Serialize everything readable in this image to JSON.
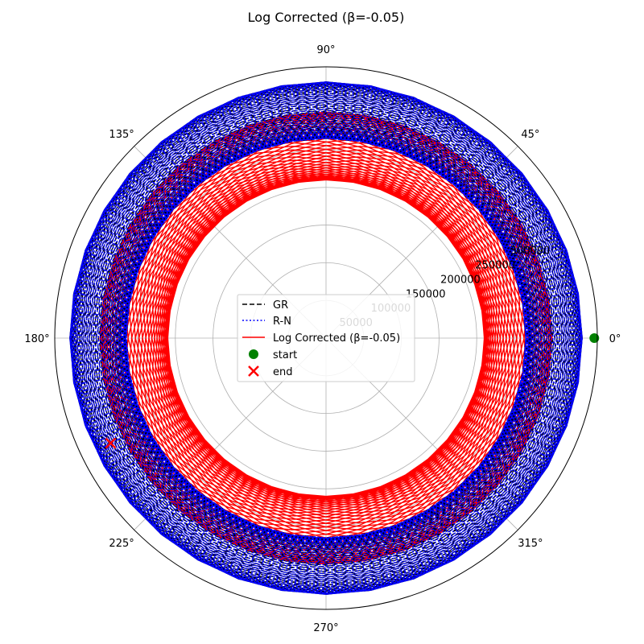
{
  "chart_data": {
    "type": "polar-line",
    "title": "Log Corrected (β=-0.05)",
    "angle_tick_labels": [
      "0°",
      "45°",
      "90°",
      "135°",
      "180°",
      "225°",
      "270°",
      "315°"
    ],
    "angle_ticks_deg": [
      0,
      45,
      90,
      135,
      180,
      225,
      270,
      315
    ],
    "radial_tick_labels": [
      "50000",
      "100000",
      "150000",
      "200000",
      "250000",
      "300000"
    ],
    "radial_ticks": [
      50000,
      100000,
      150000,
      200000,
      250000,
      300000
    ],
    "radial_label_angle_deg": 22.5,
    "rlim": [
      0,
      360000
    ],
    "grid": true,
    "legend_placement": "center",
    "series": [
      {
        "name": "GR",
        "style": "dashed",
        "color": "#000000",
        "r_min": 265000,
        "r_max": 340000,
        "orbits": 80,
        "precession_deg": 4.5
      },
      {
        "name": "R-N",
        "style": "dotted",
        "color": "#0000ff",
        "r_min": 265000,
        "r_max": 340000,
        "orbits": 80,
        "precession_deg": 4.5
      },
      {
        "name": "Log Corrected (β=-0.05)",
        "style": "solid",
        "color": "#ff0000",
        "r_min": 210000,
        "r_max": 300000,
        "orbits": 60,
        "precession_deg": 6.1
      }
    ],
    "markers": [
      {
        "name": "start",
        "marker": "circle",
        "color": "#008000",
        "theta_deg": 0,
        "r": 356000
      },
      {
        "name": "end",
        "marker": "x",
        "color": "#ff0000",
        "theta_deg": 206,
        "r": 318000
      }
    ]
  }
}
